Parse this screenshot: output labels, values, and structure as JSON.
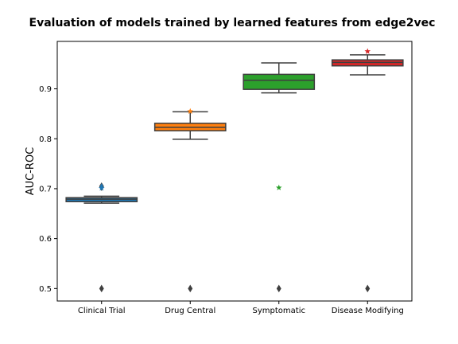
{
  "chart_data": {
    "type": "box",
    "title": "Evaluation of models trained by learned features from edge2vec",
    "xlabel": "",
    "ylabel": "AUC-ROC",
    "ylim": [
      0.475,
      0.995
    ],
    "yticks": [
      0.5,
      0.6,
      0.7,
      0.8,
      0.9
    ],
    "grid": false,
    "categories": [
      "Clinical Trial",
      "Drug Central",
      "Symptomatic",
      "Disease Modifying"
    ],
    "boxes": [
      {
        "category": "Clinical Trial",
        "color": "#1f77b4",
        "whisker_low": 0.671,
        "q1": 0.674,
        "median": 0.679,
        "q3": 0.682,
        "whisker_high": 0.685,
        "outliers": [
          0.5,
          0.703,
          0.705
        ],
        "star": 0.701
      },
      {
        "category": "Drug Central",
        "color": "#ff7f0e",
        "whisker_low": 0.799,
        "q1": 0.816,
        "median": 0.823,
        "q3": 0.831,
        "whisker_high": 0.854,
        "outliers": [
          0.5
        ],
        "star": 0.855
      },
      {
        "category": "Symptomatic",
        "color": "#2ca02c",
        "whisker_low": 0.892,
        "q1": 0.899,
        "median": 0.917,
        "q3": 0.929,
        "whisker_high": 0.952,
        "outliers": [
          0.5
        ],
        "star": 0.702
      },
      {
        "category": "Disease Modifying",
        "color": "#d62728",
        "whisker_low": 0.928,
        "q1": 0.946,
        "median": 0.953,
        "q3": 0.958,
        "whisker_high": 0.968,
        "outliers": [
          0.5
        ],
        "star": 0.975
      }
    ]
  }
}
